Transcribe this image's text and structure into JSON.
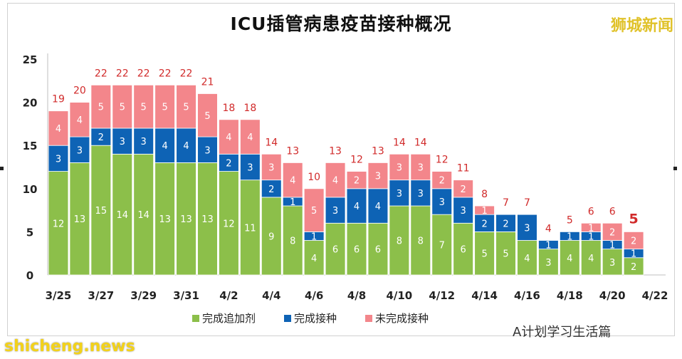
{
  "title": "ICU插管病患疫苗接种概况",
  "brand_text": "狮城新闻",
  "watermarks": {
    "account": "A计划学习生活篇",
    "site": "shicheng.news"
  },
  "legend": [
    {
      "label": "完成追加剂",
      "color": "#8cbf4a"
    },
    {
      "label": "完成接种",
      "color": "#0e63b5"
    },
    {
      "label": "未完成接种",
      "color": "#f3868b"
    }
  ],
  "chart_data": {
    "type": "bar",
    "stacked": true,
    "title": "ICU插管病患疫苗接种概况",
    "ylim": [
      0,
      25
    ],
    "yticks": [
      0,
      5,
      10,
      15,
      20,
      25
    ],
    "xtick_labels": [
      "3/25",
      "3/27",
      "3/29",
      "3/31",
      "4/2",
      "4/4",
      "4/6",
      "4/8",
      "4/10",
      "4/12",
      "4/14",
      "4/16",
      "4/18",
      "4/20",
      "4/22"
    ],
    "categories": [
      "3/25",
      "3/26",
      "3/27",
      "3/28",
      "3/29",
      "3/30",
      "3/31",
      "4/1",
      "4/2",
      "4/3",
      "4/4",
      "4/5",
      "4/6",
      "4/7",
      "4/8",
      "4/9",
      "4/10",
      "4/11",
      "4/12",
      "4/13",
      "4/14",
      "4/15",
      "4/16",
      "4/17",
      "4/18",
      "4/19",
      "4/20",
      "4/21"
    ],
    "series": [
      {
        "name": "完成追加剂",
        "color": "#8cbf4a",
        "values": [
          12,
          13,
          15,
          14,
          14,
          13,
          13,
          13,
          12,
          11,
          9,
          8,
          4,
          6,
          6,
          6,
          8,
          8,
          7,
          6,
          5,
          5,
          4,
          3,
          4,
          4,
          3,
          2
        ]
      },
      {
        "name": "完成接种",
        "color": "#0e63b5",
        "values": [
          3,
          3,
          2,
          3,
          3,
          4,
          4,
          3,
          2,
          3,
          2,
          1,
          1,
          3,
          4,
          4,
          3,
          3,
          3,
          3,
          2,
          2,
          3,
          1,
          1,
          1,
          1,
          1
        ]
      },
      {
        "name": "未完成接种",
        "color": "#f3868b",
        "values": [
          4,
          4,
          5,
          5,
          5,
          5,
          5,
          5,
          4,
          4,
          3,
          4,
          5,
          4,
          2,
          3,
          3,
          3,
          2,
          2,
          1,
          0,
          0,
          0,
          0,
          1,
          2,
          2
        ]
      }
    ],
    "totals": [
      19,
      20,
      22,
      22,
      22,
      22,
      22,
      21,
      18,
      18,
      14,
      13,
      10,
      13,
      12,
      13,
      14,
      14,
      12,
      11,
      8,
      7,
      7,
      4,
      5,
      6,
      6,
      5
    ],
    "grid": false,
    "legend_position": "bottom"
  }
}
